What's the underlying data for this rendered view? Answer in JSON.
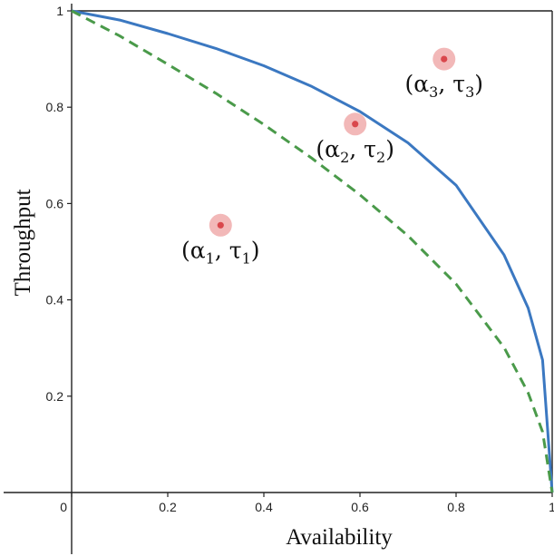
{
  "chart_data": {
    "type": "line",
    "xlabel": "Availability",
    "ylabel": "Throughput",
    "xlim": [
      0,
      1
    ],
    "ylim": [
      0,
      1
    ],
    "x_ticks": [
      "0",
      "0.2",
      "0.4",
      "0.6",
      "0.8",
      "1"
    ],
    "y_ticks": [
      "0.2",
      "0.4",
      "0.6",
      "0.8",
      "1"
    ],
    "x_tick_values": [
      0,
      0.2,
      0.4,
      0.6,
      0.8,
      1
    ],
    "y_tick_values": [
      0.2,
      0.4,
      0.6,
      0.8,
      1
    ],
    "grid": false,
    "series": [
      {
        "style": "solid",
        "color": "#3b78c1",
        "x": [
          0,
          0.1,
          0.2,
          0.3,
          0.4,
          0.5,
          0.6,
          0.7,
          0.8,
          0.9,
          0.95,
          0.98,
          1.0
        ],
        "y": [
          1.0,
          0.981,
          0.953,
          0.922,
          0.886,
          0.843,
          0.791,
          0.726,
          0.638,
          0.493,
          0.383,
          0.275,
          0.0
        ]
      },
      {
        "style": "dashed",
        "color": "#4a9a4a",
        "x": [
          0,
          0.1,
          0.2,
          0.3,
          0.4,
          0.5,
          0.6,
          0.7,
          0.8,
          0.9,
          0.95,
          0.98,
          1.0
        ],
        "y": [
          1.0,
          0.948,
          0.889,
          0.829,
          0.764,
          0.694,
          0.618,
          0.533,
          0.433,
          0.301,
          0.207,
          0.126,
          0.0
        ]
      }
    ],
    "points": [
      {
        "x": 0.31,
        "y": 0.555,
        "label_base": "(α",
        "label_sub": "1",
        "label_sep": ", ",
        "label_tau": "τ",
        "label_end": ")"
      },
      {
        "x": 0.59,
        "y": 0.765,
        "label_base": "(α",
        "label_sub": "2",
        "label_sep": ", ",
        "label_tau": "τ",
        "label_end": ")"
      },
      {
        "x": 0.775,
        "y": 0.9,
        "label_base": "(α",
        "label_sub": "3",
        "label_sep": ", ",
        "label_tau": "τ",
        "label_end": ")"
      }
    ],
    "point_color": "#d9474c",
    "point_halo_color": "#f2b8b8"
  }
}
